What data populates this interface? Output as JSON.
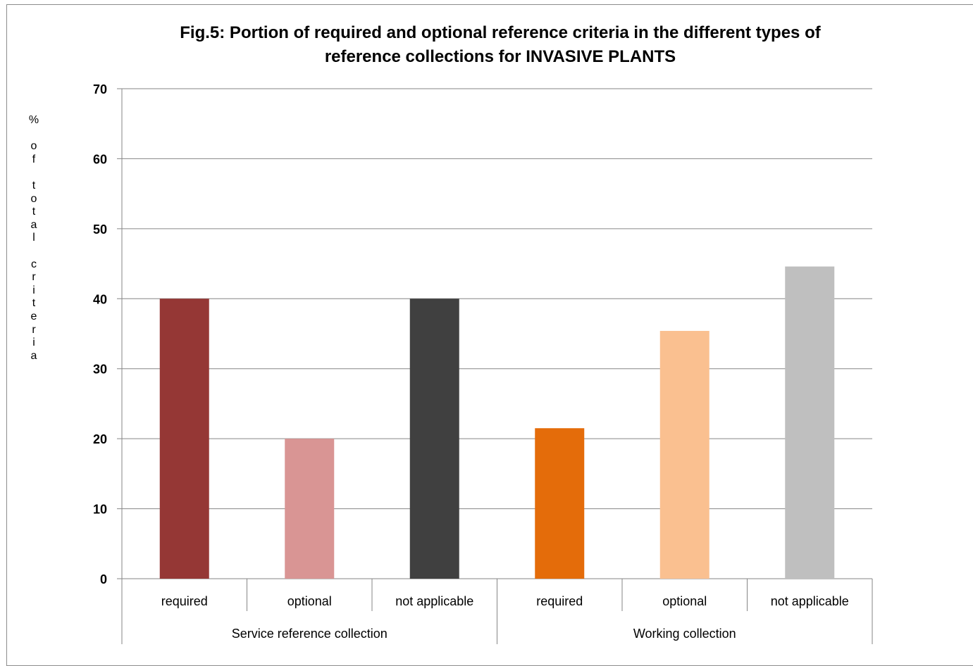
{
  "chart_data": {
    "type": "bar",
    "title": "Fig.5: Portion of required and optional reference criteria in the different types of reference collections for INVASIVE PLANTS",
    "ylabel": "% of total criteria",
    "ylim": [
      0,
      70
    ],
    "yticks": [
      0,
      10,
      20,
      30,
      40,
      50,
      60,
      70
    ],
    "grid": true,
    "groups": [
      "Service reference collection",
      "Working collection"
    ],
    "categories": [
      "required",
      "optional",
      "not applicable",
      "required",
      "optional",
      "not applicable"
    ],
    "values": [
      40,
      20,
      40,
      21.5,
      35.4,
      44.6
    ],
    "colors": [
      "#953735",
      "#d99594",
      "#404040",
      "#e46c0a",
      "#fac090",
      "#bfbfbf"
    ]
  }
}
